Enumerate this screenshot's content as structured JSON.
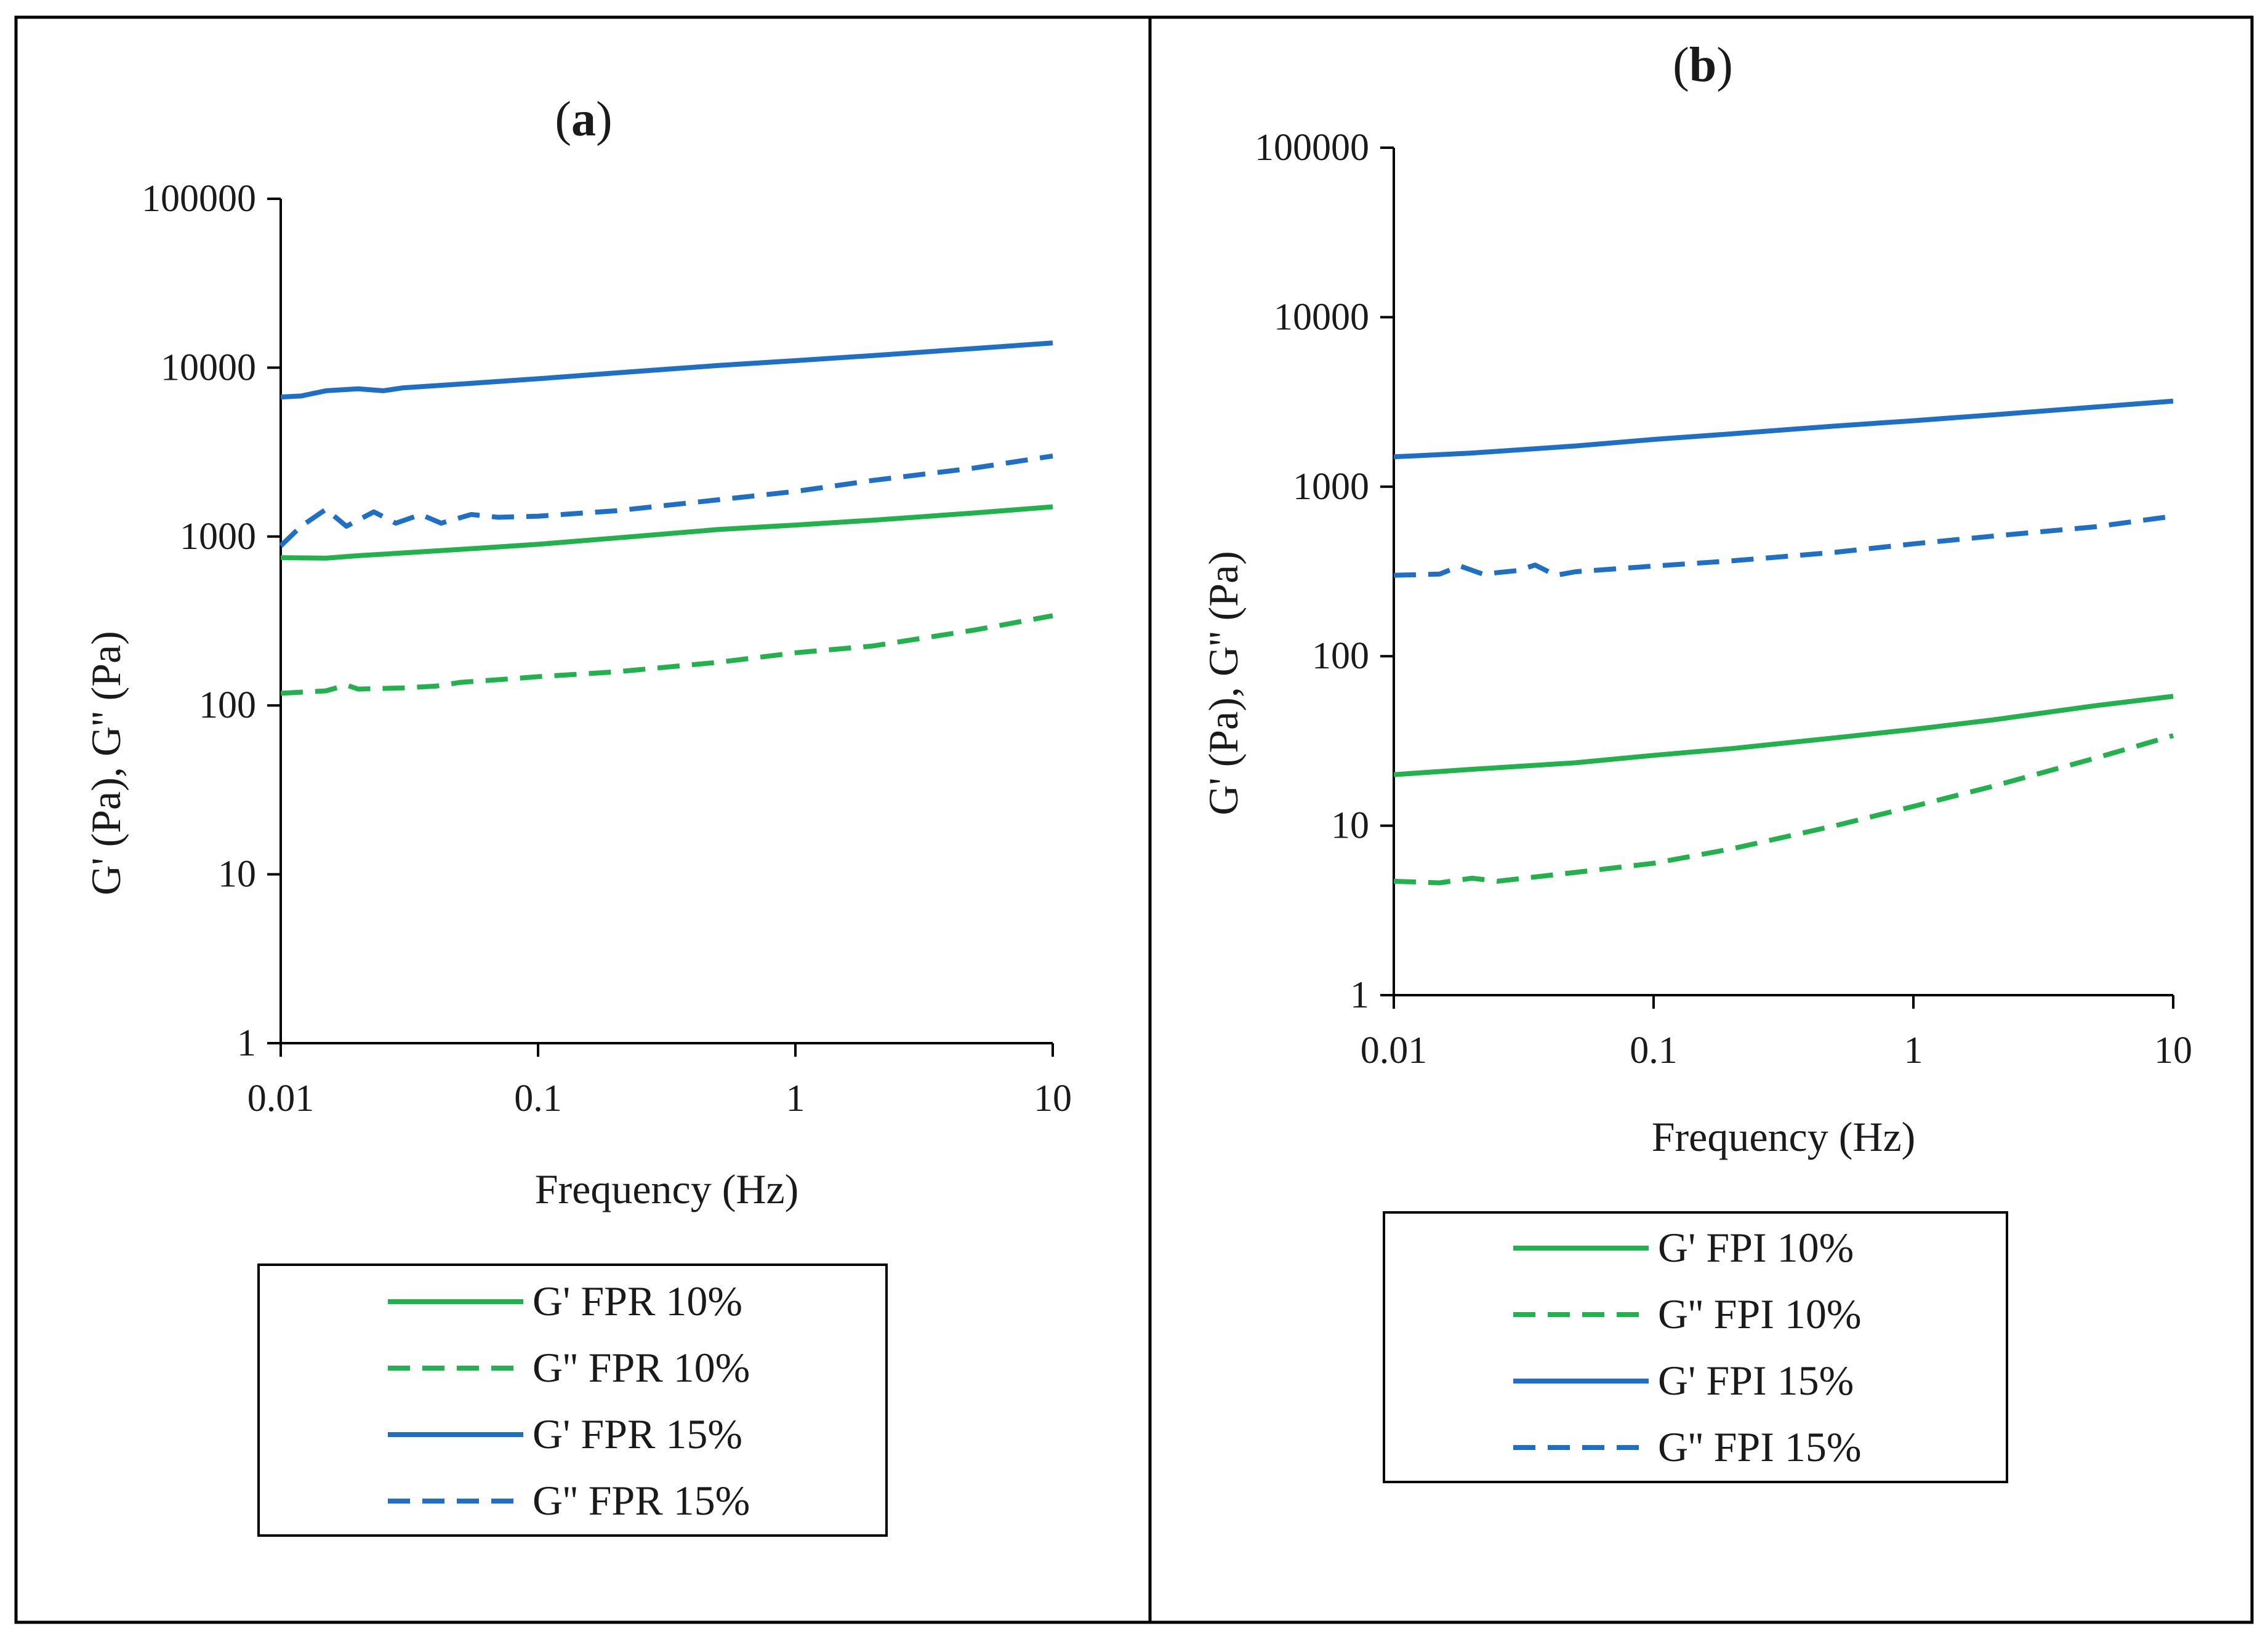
{
  "chart_data": [
    {
      "id": "a",
      "type": "line",
      "title": "a",
      "xscale": "log",
      "yscale": "log",
      "xlim": [
        0.01,
        10
      ],
      "ylim": [
        1,
        100000
      ],
      "xticks": [
        "0.01",
        "0.1",
        "1",
        "10"
      ],
      "yticks": [
        "1",
        "10",
        "100",
        "1000",
        "10000",
        "100000"
      ],
      "xlabel": "Frequency (Hz)",
      "ylabel": "G' (Pa), G'' (Pa)",
      "legend_position": "below",
      "series": [
        {
          "name": "G' FPR 10%",
          "color": "#22b14c",
          "dash": "solid",
          "points": [
            [
              0.01,
              750
            ],
            [
              0.015,
              745
            ],
            [
              0.02,
              770
            ],
            [
              0.03,
              800
            ],
            [
              0.05,
              840
            ],
            [
              0.1,
              900
            ],
            [
              0.2,
              980
            ],
            [
              0.5,
              1100
            ],
            [
              1,
              1170
            ],
            [
              2,
              1250
            ],
            [
              5,
              1380
            ],
            [
              10,
              1500
            ]
          ]
        },
        {
          "name": "G'' FPR 10%",
          "color": "#22b14c",
          "dash": "dashed",
          "points": [
            [
              0.01,
              118
            ],
            [
              0.015,
              122
            ],
            [
              0.018,
              132
            ],
            [
              0.02,
              125
            ],
            [
              0.03,
              127
            ],
            [
              0.04,
              130
            ],
            [
              0.05,
              137
            ],
            [
              0.07,
              142
            ],
            [
              0.1,
              148
            ],
            [
              0.2,
              158
            ],
            [
              0.5,
              180
            ],
            [
              1,
              205
            ],
            [
              2,
              225
            ],
            [
              5,
              280
            ],
            [
              10,
              340
            ]
          ]
        },
        {
          "name": "G' FPR 15%",
          "color": "#1f6fc5",
          "dash": "solid",
          "points": [
            [
              0.01,
              6700
            ],
            [
              0.012,
              6800
            ],
            [
              0.015,
              7300
            ],
            [
              0.02,
              7500
            ],
            [
              0.025,
              7300
            ],
            [
              0.03,
              7600
            ],
            [
              0.05,
              8000
            ],
            [
              0.1,
              8600
            ],
            [
              0.2,
              9300
            ],
            [
              0.5,
              10300
            ],
            [
              1,
              11000
            ],
            [
              2,
              11800
            ],
            [
              5,
              13000
            ],
            [
              10,
              14000
            ]
          ]
        },
        {
          "name": "G'' FPR 15%",
          "color": "#1f6fc5",
          "dash": "dashed",
          "points": [
            [
              0.01,
              880
            ],
            [
              0.012,
              1150
            ],
            [
              0.015,
              1450
            ],
            [
              0.018,
              1150
            ],
            [
              0.023,
              1400
            ],
            [
              0.028,
              1200
            ],
            [
              0.035,
              1350
            ],
            [
              0.042,
              1200
            ],
            [
              0.055,
              1350
            ],
            [
              0.07,
              1300
            ],
            [
              0.1,
              1320
            ],
            [
              0.2,
              1420
            ],
            [
              0.5,
              1650
            ],
            [
              1,
              1850
            ],
            [
              2,
              2150
            ],
            [
              5,
              2550
            ],
            [
              10,
              3000
            ]
          ]
        }
      ]
    },
    {
      "id": "b",
      "type": "line",
      "title": "b",
      "xscale": "log",
      "yscale": "log",
      "xlim": [
        0.01,
        10
      ],
      "ylim": [
        1,
        100000
      ],
      "xticks": [
        "0.01",
        "0.1",
        "1",
        "10"
      ],
      "yticks": [
        "1",
        "10",
        "100",
        "1000",
        "10000",
        "100000"
      ],
      "xlabel": "Frequency (Hz)",
      "ylabel": "G' (Pa), G'' (Pa)",
      "legend_position": "below",
      "series": [
        {
          "name": "G' FPI 10%",
          "color": "#22b14c",
          "dash": "solid",
          "points": [
            [
              0.01,
              20
            ],
            [
              0.02,
              21.5
            ],
            [
              0.05,
              23.5
            ],
            [
              0.1,
              26
            ],
            [
              0.2,
              28.5
            ],
            [
              0.5,
              33
            ],
            [
              1,
              37
            ],
            [
              2,
              42
            ],
            [
              5,
              51
            ],
            [
              10,
              58
            ]
          ]
        },
        {
          "name": "G'' FPI 10%",
          "color": "#22b14c",
          "dash": "dashed",
          "points": [
            [
              0.01,
              4.7
            ],
            [
              0.015,
              4.6
            ],
            [
              0.02,
              4.9
            ],
            [
              0.025,
              4.7
            ],
            [
              0.03,
              4.85
            ],
            [
              0.04,
              5.1
            ],
            [
              0.05,
              5.3
            ],
            [
              0.1,
              6.0
            ],
            [
              0.2,
              7.3
            ],
            [
              0.5,
              10
            ],
            [
              1,
              13
            ],
            [
              2,
              17
            ],
            [
              5,
              25
            ],
            [
              10,
              34
            ]
          ]
        },
        {
          "name": "G' FPI 15%",
          "color": "#1f6fc5",
          "dash": "solid",
          "points": [
            [
              0.01,
              1500
            ],
            [
              0.02,
              1580
            ],
            [
              0.05,
              1740
            ],
            [
              0.1,
              1900
            ],
            [
              0.2,
              2050
            ],
            [
              0.5,
              2280
            ],
            [
              1,
              2450
            ],
            [
              2,
              2650
            ],
            [
              5,
              2950
            ],
            [
              10,
              3200
            ]
          ]
        },
        {
          "name": "G'' FPI 15%",
          "color": "#1f6fc5",
          "dash": "dashed",
          "points": [
            [
              0.01,
              300
            ],
            [
              0.015,
              305
            ],
            [
              0.018,
              340
            ],
            [
              0.022,
              305
            ],
            [
              0.03,
              320
            ],
            [
              0.035,
              345
            ],
            [
              0.042,
              300
            ],
            [
              0.05,
              315
            ],
            [
              0.1,
              340
            ],
            [
              0.2,
              365
            ],
            [
              0.5,
              410
            ],
            [
              1,
              460
            ],
            [
              2,
              510
            ],
            [
              5,
              580
            ],
            [
              10,
              670
            ]
          ]
        }
      ]
    }
  ]
}
